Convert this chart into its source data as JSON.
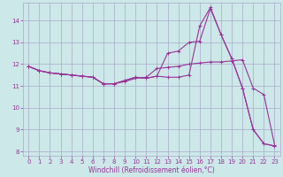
{
  "xlabel": "Windchill (Refroidissement éolien,°C)",
  "background_color": "#cce8e8",
  "grid_color": "#aaaacc",
  "line_color": "#993399",
  "xlim": [
    -0.5,
    23.5
  ],
  "ylim": [
    7.8,
    14.8
  ],
  "yticks": [
    8,
    9,
    10,
    11,
    12,
    13,
    14
  ],
  "xticks": [
    0,
    1,
    2,
    3,
    4,
    5,
    6,
    7,
    8,
    9,
    10,
    11,
    12,
    13,
    14,
    15,
    16,
    17,
    18,
    19,
    20,
    21,
    22,
    23
  ],
  "series1_x": [
    0,
    1,
    2,
    3,
    4,
    5,
    6,
    7,
    8,
    9,
    10,
    11,
    12,
    13,
    14,
    15,
    16,
    17,
    18,
    19,
    20,
    21,
    22,
    23
  ],
  "series1_y": [
    11.9,
    11.7,
    11.6,
    11.55,
    11.5,
    11.45,
    11.4,
    11.1,
    11.1,
    11.2,
    11.35,
    11.4,
    11.8,
    11.85,
    11.9,
    12.0,
    12.05,
    12.1,
    12.1,
    12.15,
    12.2,
    10.9,
    10.6,
    8.3
  ],
  "series2_x": [
    0,
    1,
    2,
    3,
    4,
    5,
    6,
    7,
    8,
    9,
    10,
    11,
    12,
    13,
    14,
    15,
    16,
    17,
    18,
    19,
    20,
    21,
    22,
    23
  ],
  "series2_y": [
    11.9,
    11.7,
    11.6,
    11.55,
    11.5,
    11.45,
    11.4,
    11.1,
    11.1,
    11.25,
    11.4,
    11.35,
    11.45,
    12.5,
    12.6,
    13.0,
    13.05,
    14.55,
    13.35,
    12.25,
    10.9,
    9.0,
    8.35,
    8.25
  ],
  "series3_x": [
    0,
    1,
    2,
    3,
    4,
    5,
    6,
    7,
    8,
    9,
    10,
    11,
    12,
    13,
    14,
    15,
    16,
    17,
    18,
    19,
    20,
    21,
    22,
    23
  ],
  "series3_y": [
    11.9,
    11.7,
    11.6,
    11.55,
    11.5,
    11.45,
    11.4,
    11.1,
    11.1,
    11.25,
    11.4,
    11.35,
    11.45,
    11.4,
    11.4,
    11.5,
    13.75,
    14.6,
    13.35,
    12.25,
    10.9,
    9.0,
    8.35,
    8.25
  ],
  "tick_fontsize": 5,
  "xlabel_fontsize": 5.5,
  "marker_size": 2.5,
  "linewidth": 0.8
}
